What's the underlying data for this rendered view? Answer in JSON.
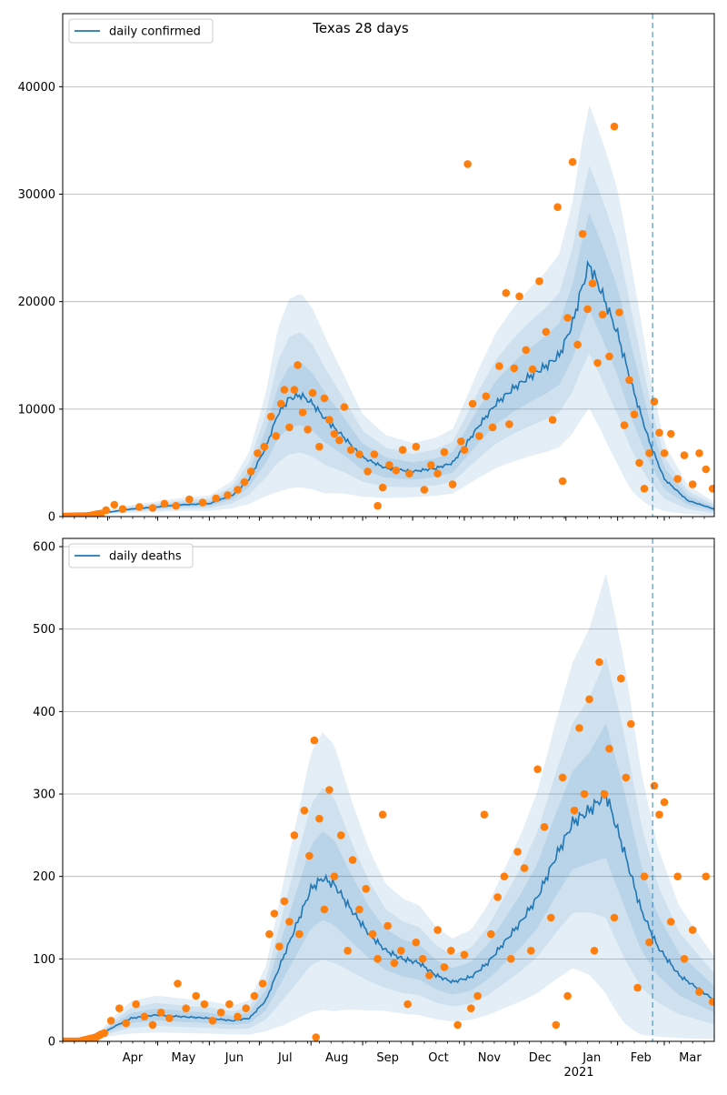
{
  "title": "Texas 28 days",
  "x_axis": {
    "months": [
      "Apr",
      "May",
      "Jun",
      "Jul",
      "Aug",
      "Sep",
      "Oct",
      "Nov",
      "Dec",
      "Jan",
      "Feb",
      "Mar"
    ],
    "year_label": "2021",
    "range": [
      "2020-03-05",
      "2021-03-31"
    ],
    "forecast_start": "2021-02-22"
  },
  "colors": {
    "line": "#1f77b4",
    "points": "#ff7f0e",
    "band": "#1f77b4",
    "grid": "#b0b0b0",
    "vline": "#1f77b4"
  },
  "chart_data": [
    {
      "type": "line",
      "legend": "daily confirmed",
      "legend_position": "top-left",
      "ylim": [
        0,
        46800
      ],
      "yticks": [
        0,
        10000,
        20000,
        30000,
        40000
      ],
      "grid": "y",
      "anchors": {
        "dates": [
          "2020-03-05",
          "2020-03-20",
          "2020-04-01",
          "2020-04-15",
          "2020-05-01",
          "2020-05-15",
          "2020-06-01",
          "2020-06-15",
          "2020-06-25",
          "2020-07-05",
          "2020-07-12",
          "2020-07-19",
          "2020-07-26",
          "2020-08-02",
          "2020-08-10",
          "2020-08-20",
          "2020-09-01",
          "2020-09-15",
          "2020-10-01",
          "2020-10-15",
          "2020-10-25",
          "2020-11-01",
          "2020-11-10",
          "2020-11-20",
          "2020-12-01",
          "2020-12-10",
          "2020-12-20",
          "2020-12-28",
          "2021-01-05",
          "2021-01-10",
          "2021-01-15",
          "2021-01-22",
          "2021-02-01",
          "2021-02-10",
          "2021-02-20",
          "2021-03-01",
          "2021-03-15",
          "2021-03-31"
        ],
        "center": [
          0,
          50,
          400,
          700,
          900,
          1100,
          1200,
          2000,
          3500,
          6500,
          9500,
          11000,
          11300,
          10500,
          9000,
          7500,
          5500,
          4500,
          4200,
          4500,
          5000,
          6500,
          8500,
          10500,
          12000,
          13000,
          14000,
          15000,
          18000,
          21000,
          23500,
          21000,
          17000,
          12000,
          7000,
          3500,
          1500,
          700
        ],
        "spread": [
          0.3,
          0.4,
          0.45,
          0.5,
          0.55,
          0.55,
          0.6,
          0.65,
          0.7,
          0.75,
          0.8,
          0.8,
          0.8,
          0.8,
          0.8,
          0.75,
          0.7,
          0.65,
          0.6,
          0.6,
          0.6,
          0.6,
          0.6,
          0.6,
          0.6,
          0.6,
          0.6,
          0.6,
          0.6,
          0.6,
          0.6,
          0.65,
          0.75,
          0.85,
          0.9,
          0.9,
          0.9,
          0.9
        ]
      },
      "observed": [
        [
          "2020-03-31",
          600
        ],
        [
          "2020-04-05",
          1100
        ],
        [
          "2020-04-10",
          700
        ],
        [
          "2020-04-20",
          900
        ],
        [
          "2020-04-28",
          800
        ],
        [
          "2020-05-05",
          1200
        ],
        [
          "2020-05-12",
          1000
        ],
        [
          "2020-05-20",
          1600
        ],
        [
          "2020-05-28",
          1300
        ],
        [
          "2020-06-05",
          1700
        ],
        [
          "2020-06-12",
          2000
        ],
        [
          "2020-06-18",
          2500
        ],
        [
          "2020-06-22",
          3200
        ],
        [
          "2020-06-26",
          4200
        ],
        [
          "2020-06-30",
          5900
        ],
        [
          "2020-07-04",
          6500
        ],
        [
          "2020-07-08",
          9300
        ],
        [
          "2020-07-11",
          7500
        ],
        [
          "2020-07-14",
          10500
        ],
        [
          "2020-07-16",
          11800
        ],
        [
          "2020-07-19",
          8300
        ],
        [
          "2020-07-22",
          11800
        ],
        [
          "2020-07-24",
          14100
        ],
        [
          "2020-07-27",
          9700
        ],
        [
          "2020-07-30",
          8100
        ],
        [
          "2020-08-02",
          11500
        ],
        [
          "2020-08-06",
          6500
        ],
        [
          "2020-08-09",
          11000
        ],
        [
          "2020-08-12",
          9000
        ],
        [
          "2020-08-15",
          7700
        ],
        [
          "2020-08-18",
          7100
        ],
        [
          "2020-08-21",
          10200
        ],
        [
          "2020-08-25",
          6200
        ],
        [
          "2020-08-30",
          5800
        ],
        [
          "2020-09-04",
          4200
        ],
        [
          "2020-09-08",
          5800
        ],
        [
          "2020-09-10",
          1000
        ],
        [
          "2020-09-13",
          2700
        ],
        [
          "2020-09-17",
          4800
        ],
        [
          "2020-09-21",
          4300
        ],
        [
          "2020-09-25",
          6200
        ],
        [
          "2020-09-29",
          4000
        ],
        [
          "2020-10-03",
          6500
        ],
        [
          "2020-10-08",
          2500
        ],
        [
          "2020-10-12",
          4800
        ],
        [
          "2020-10-16",
          4000
        ],
        [
          "2020-10-20",
          6000
        ],
        [
          "2020-10-25",
          3000
        ],
        [
          "2020-10-30",
          7000
        ],
        [
          "2020-11-01",
          6200
        ],
        [
          "2020-11-03",
          32800
        ],
        [
          "2020-11-06",
          10500
        ],
        [
          "2020-11-10",
          7500
        ],
        [
          "2020-11-14",
          11200
        ],
        [
          "2020-11-18",
          8300
        ],
        [
          "2020-11-22",
          14000
        ],
        [
          "2020-11-26",
          20800
        ],
        [
          "2020-11-28",
          8600
        ],
        [
          "2020-12-01",
          13800
        ],
        [
          "2020-12-04",
          20500
        ],
        [
          "2020-12-08",
          15500
        ],
        [
          "2020-12-12",
          13700
        ],
        [
          "2020-12-16",
          21900
        ],
        [
          "2020-12-20",
          17200
        ],
        [
          "2020-12-24",
          9000
        ],
        [
          "2020-12-27",
          28800
        ],
        [
          "2020-12-30",
          3300
        ],
        [
          "2021-01-02",
          18500
        ],
        [
          "2021-01-05",
          33000
        ],
        [
          "2021-01-08",
          16000
        ],
        [
          "2021-01-11",
          26300
        ],
        [
          "2021-01-14",
          19300
        ],
        [
          "2021-01-17",
          21700
        ],
        [
          "2021-01-20",
          14300
        ],
        [
          "2021-01-23",
          18800
        ],
        [
          "2021-01-27",
          14900
        ],
        [
          "2021-01-30",
          36300
        ],
        [
          "2021-02-02",
          19000
        ],
        [
          "2021-02-05",
          8500
        ],
        [
          "2021-02-08",
          12700
        ],
        [
          "2021-02-11",
          9500
        ],
        [
          "2021-02-14",
          5000
        ],
        [
          "2021-02-17",
          2600
        ],
        [
          "2021-02-20",
          5900
        ],
        [
          "2021-02-23",
          10700
        ],
        [
          "2021-02-26",
          7800
        ],
        [
          "2021-03-01",
          5900
        ],
        [
          "2021-03-05",
          7700
        ],
        [
          "2021-03-09",
          3500
        ],
        [
          "2021-03-13",
          5700
        ],
        [
          "2021-03-18",
          3000
        ],
        [
          "2021-03-22",
          5900
        ],
        [
          "2021-03-26",
          4400
        ],
        [
          "2021-03-30",
          2600
        ]
      ]
    },
    {
      "type": "line",
      "legend": "daily deaths",
      "legend_position": "top-left",
      "ylim": [
        0,
        610
      ],
      "yticks": [
        0,
        100,
        200,
        300,
        400,
        500,
        600
      ],
      "grid": "y",
      "anchors": {
        "dates": [
          "2020-03-05",
          "2020-03-15",
          "2020-03-25",
          "2020-04-05",
          "2020-04-15",
          "2020-04-30",
          "2020-05-15",
          "2020-06-01",
          "2020-06-15",
          "2020-06-25",
          "2020-07-05",
          "2020-07-15",
          "2020-07-25",
          "2020-08-01",
          "2020-08-08",
          "2020-08-15",
          "2020-08-25",
          "2020-09-05",
          "2020-09-15",
          "2020-09-25",
          "2020-10-05",
          "2020-10-15",
          "2020-10-25",
          "2020-11-05",
          "2020-11-15",
          "2020-11-25",
          "2020-12-05",
          "2020-12-15",
          "2020-12-25",
          "2021-01-05",
          "2021-01-15",
          "2021-01-25",
          "2021-02-05",
          "2021-02-15",
          "2021-02-25",
          "2021-03-10",
          "2021-03-31"
        ],
        "center": [
          0,
          0,
          5,
          18,
          28,
          32,
          30,
          28,
          25,
          28,
          50,
          100,
          150,
          185,
          198,
          190,
          160,
          130,
          110,
          100,
          95,
          80,
          72,
          78,
          95,
          120,
          145,
          175,
          220,
          265,
          280,
          300,
          230,
          160,
          115,
          80,
          50
        ],
        "spread": [
          0.4,
          0.5,
          0.6,
          0.65,
          0.7,
          0.7,
          0.7,
          0.7,
          0.7,
          0.75,
          0.8,
          0.85,
          0.85,
          0.85,
          0.85,
          0.85,
          0.8,
          0.75,
          0.7,
          0.7,
          0.7,
          0.7,
          0.7,
          0.7,
          0.7,
          0.7,
          0.7,
          0.7,
          0.7,
          0.7,
          0.75,
          0.85,
          0.95,
          1.0,
          1.0,
          1.0,
          1.0
        ]
      },
      "observed": [
        [
          "2020-03-30",
          10
        ],
        [
          "2020-04-03",
          25
        ],
        [
          "2020-04-08",
          40
        ],
        [
          "2020-04-12",
          22
        ],
        [
          "2020-04-18",
          45
        ],
        [
          "2020-04-23",
          30
        ],
        [
          "2020-04-28",
          20
        ],
        [
          "2020-05-03",
          35
        ],
        [
          "2020-05-08",
          28
        ],
        [
          "2020-05-13",
          70
        ],
        [
          "2020-05-18",
          40
        ],
        [
          "2020-05-24",
          55
        ],
        [
          "2020-05-29",
          45
        ],
        [
          "2020-06-03",
          25
        ],
        [
          "2020-06-08",
          35
        ],
        [
          "2020-06-13",
          45
        ],
        [
          "2020-06-18",
          30
        ],
        [
          "2020-06-23",
          40
        ],
        [
          "2020-06-28",
          55
        ],
        [
          "2020-07-03",
          70
        ],
        [
          "2020-07-07",
          130
        ],
        [
          "2020-07-10",
          155
        ],
        [
          "2020-07-13",
          115
        ],
        [
          "2020-07-16",
          170
        ],
        [
          "2020-07-19",
          145
        ],
        [
          "2020-07-22",
          250
        ],
        [
          "2020-07-25",
          130
        ],
        [
          "2020-07-28",
          280
        ],
        [
          "2020-07-31",
          225
        ],
        [
          "2020-08-03",
          365
        ],
        [
          "2020-08-04",
          5
        ],
        [
          "2020-08-06",
          270
        ],
        [
          "2020-08-09",
          160
        ],
        [
          "2020-08-12",
          305
        ],
        [
          "2020-08-15",
          200
        ],
        [
          "2020-08-19",
          250
        ],
        [
          "2020-08-23",
          110
        ],
        [
          "2020-08-26",
          220
        ],
        [
          "2020-08-30",
          160
        ],
        [
          "2020-09-03",
          185
        ],
        [
          "2020-09-07",
          130
        ],
        [
          "2020-09-10",
          100
        ],
        [
          "2020-09-13",
          275
        ],
        [
          "2020-09-16",
          140
        ],
        [
          "2020-09-20",
          95
        ],
        [
          "2020-09-24",
          110
        ],
        [
          "2020-09-28",
          45
        ],
        [
          "2020-10-03",
          120
        ],
        [
          "2020-10-07",
          100
        ],
        [
          "2020-10-11",
          80
        ],
        [
          "2020-10-16",
          135
        ],
        [
          "2020-10-20",
          90
        ],
        [
          "2020-10-24",
          110
        ],
        [
          "2020-10-28",
          20
        ],
        [
          "2020-11-01",
          105
        ],
        [
          "2020-11-05",
          40
        ],
        [
          "2020-11-09",
          55
        ],
        [
          "2020-11-13",
          275
        ],
        [
          "2020-11-17",
          130
        ],
        [
          "2020-11-21",
          175
        ],
        [
          "2020-11-25",
          200
        ],
        [
          "2020-11-29",
          100
        ],
        [
          "2020-12-03",
          230
        ],
        [
          "2020-12-07",
          210
        ],
        [
          "2020-12-11",
          110
        ],
        [
          "2020-12-15",
          330
        ],
        [
          "2020-12-19",
          260
        ],
        [
          "2020-12-23",
          150
        ],
        [
          "2020-12-26",
          20
        ],
        [
          "2020-12-30",
          320
        ],
        [
          "2021-01-02",
          55
        ],
        [
          "2021-01-06",
          280
        ],
        [
          "2021-01-09",
          380
        ],
        [
          "2021-01-12",
          300
        ],
        [
          "2021-01-15",
          415
        ],
        [
          "2021-01-18",
          110
        ],
        [
          "2021-01-21",
          460
        ],
        [
          "2021-01-24",
          300
        ],
        [
          "2021-01-27",
          355
        ],
        [
          "2021-01-30",
          150
        ],
        [
          "2021-02-03",
          440
        ],
        [
          "2021-02-06",
          320
        ],
        [
          "2021-02-09",
          385
        ],
        [
          "2021-02-13",
          65
        ],
        [
          "2021-02-17",
          200
        ],
        [
          "2021-02-20",
          120
        ],
        [
          "2021-02-23",
          310
        ],
        [
          "2021-02-26",
          275
        ],
        [
          "2021-03-01",
          290
        ],
        [
          "2021-03-05",
          145
        ],
        [
          "2021-03-09",
          200
        ],
        [
          "2021-03-13",
          100
        ],
        [
          "2021-03-18",
          135
        ],
        [
          "2021-03-22",
          60
        ],
        [
          "2021-03-26",
          200
        ],
        [
          "2021-03-30",
          48
        ]
      ]
    }
  ]
}
